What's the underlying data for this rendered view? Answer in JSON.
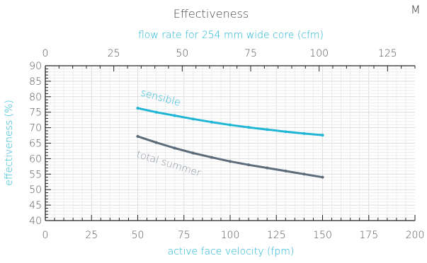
{
  "chart_data": {
    "type": "line",
    "title": "Effectiveness",
    "corner_text": "M",
    "xlabel": "active face velocity (fpm)",
    "ylabel": "effectiveness (%)",
    "x2label": "flow  rate  for 254 mm wide core (cfm)",
    "xlim": [
      0,
      200
    ],
    "ylim": [
      40,
      90
    ],
    "x2lim": [
      0,
      135
    ],
    "xticks": [
      0,
      25,
      50,
      75,
      100,
      125,
      150,
      175,
      200
    ],
    "x2ticks": [
      0,
      25,
      50,
      75,
      100,
      125
    ],
    "yticks": [
      40,
      45,
      50,
      55,
      60,
      65,
      70,
      75,
      80,
      85,
      90
    ],
    "grid": true,
    "series": [
      {
        "name": "sensible",
        "color": "#1fb5d4",
        "x": [
          50,
          60,
          70,
          80,
          90,
          100,
          110,
          120,
          130,
          140,
          150
        ],
        "y": [
          76.3,
          75.0,
          73.9,
          72.8,
          71.8,
          70.9,
          70.1,
          69.4,
          68.7,
          68.1,
          67.6
        ]
      },
      {
        "name": "total summer",
        "color": "#5c6b7a",
        "x": [
          50,
          60,
          70,
          80,
          90,
          100,
          110,
          120,
          130,
          140,
          150
        ],
        "y": [
          67.2,
          65.2,
          63.4,
          61.8,
          60.4,
          59.1,
          58.0,
          57.0,
          56.0,
          55.0,
          54.0
        ]
      }
    ]
  }
}
